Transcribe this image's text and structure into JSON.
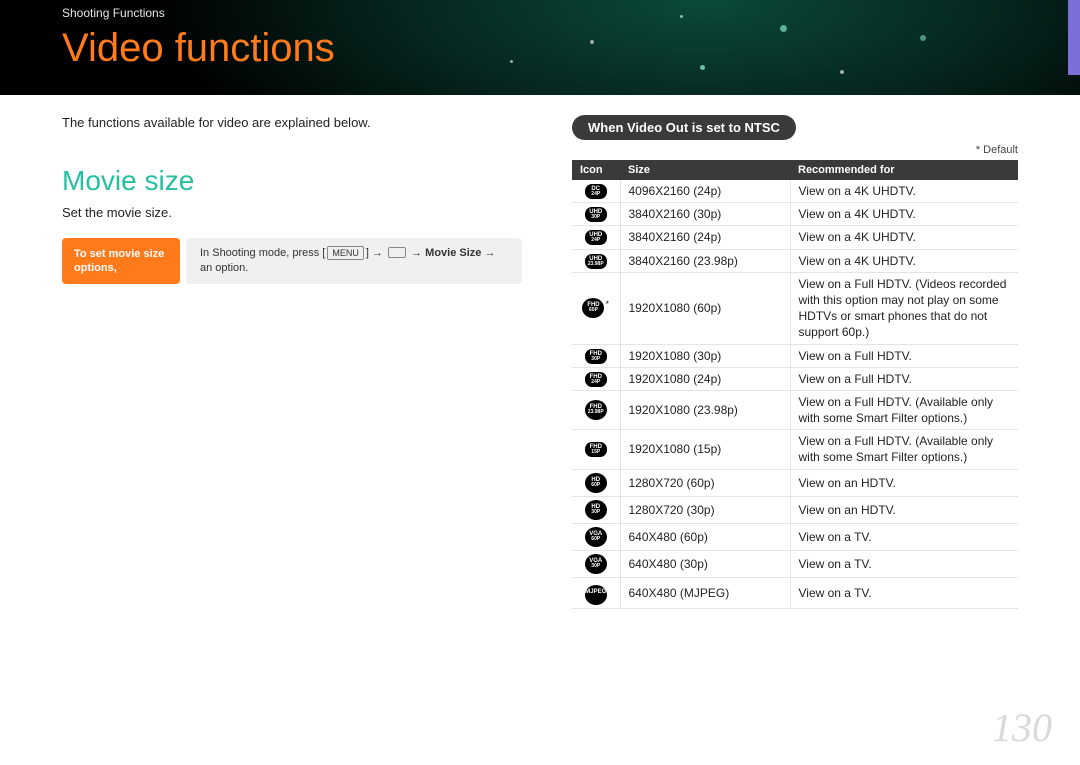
{
  "breadcrumb": "Shooting Functions",
  "page_title": "Video functions",
  "intro": "The functions available for video are explained below.",
  "section": {
    "heading": "Movie size",
    "sub": "Set the movie size."
  },
  "instruction": {
    "label": "To set movie size options,",
    "prefix": "In Shooting mode, press ",
    "menu": "MENU",
    "arrow": " → ",
    "mid": "Movie Size",
    "suffix": " an option."
  },
  "right": {
    "pill": "When Video Out is set to NTSC",
    "default_note": "* Default",
    "headers": {
      "icon": "Icon",
      "size": "Size",
      "rec": "Recommended for"
    },
    "rows": [
      {
        "icon_top": "DC",
        "icon_bot": "24P",
        "star": false,
        "size": "4096X2160 (24p)",
        "rec": "View on a 4K UHDTV."
      },
      {
        "icon_top": "UHD",
        "icon_bot": "30P",
        "star": false,
        "size": "3840X2160 (30p)",
        "rec": "View on a 4K UHDTV."
      },
      {
        "icon_top": "UHD",
        "icon_bot": "24P",
        "star": false,
        "size": "3840X2160 (24p)",
        "rec": "View on a 4K UHDTV."
      },
      {
        "icon_top": "UHD",
        "icon_bot": "23.98P",
        "star": false,
        "size": "3840X2160 (23.98p)",
        "rec": "View on a 4K UHDTV."
      },
      {
        "icon_top": "FHD",
        "icon_bot": "60P",
        "star": true,
        "round": true,
        "size": "1920X1080 (60p)",
        "rec": "View on a Full HDTV. (Videos recorded with this option may not play on some HDTVs or smart phones that do not support 60p.)"
      },
      {
        "icon_top": "FHD",
        "icon_bot": "30P",
        "star": false,
        "size": "1920X1080 (30p)",
        "rec": "View on a Full HDTV."
      },
      {
        "icon_top": "FHD",
        "icon_bot": "24P",
        "star": false,
        "size": "1920X1080 (24p)",
        "rec": "View on a Full HDTV."
      },
      {
        "icon_top": "FHD",
        "icon_bot": "23.98P",
        "star": false,
        "round": true,
        "size": "1920X1080 (23.98p)",
        "rec": "View on a Full HDTV. (Available only with some Smart Filter options.)"
      },
      {
        "icon_top": "FHD",
        "icon_bot": "15P",
        "star": false,
        "size": "1920X1080 (15p)",
        "rec": "View on a Full HDTV. (Available only with some Smart Filter options.)"
      },
      {
        "icon_top": "HD",
        "icon_bot": "60P",
        "star": false,
        "round": true,
        "size": "1280X720 (60p)",
        "rec": "View on an HDTV."
      },
      {
        "icon_top": "HD",
        "icon_bot": "30P",
        "star": false,
        "round": true,
        "size": "1280X720 (30p)",
        "rec": "View on an HDTV."
      },
      {
        "icon_top": "VGA",
        "icon_bot": "60P",
        "star": false,
        "round": true,
        "size": "640X480 (60p)",
        "rec": "View on a TV."
      },
      {
        "icon_top": "VGA",
        "icon_bot": "30P",
        "star": false,
        "round": true,
        "size": "640X480 (30p)",
        "rec": "View on a TV."
      },
      {
        "icon_top": "MJPEG",
        "icon_bot": "",
        "star": false,
        "round": true,
        "size": "640X480 (MJPEG)",
        "rec": "View on a TV."
      }
    ]
  },
  "page_number": "130",
  "colors": {
    "accent_orange": "#ff7a1a",
    "accent_teal": "#26bfa0",
    "table_header_bg": "#3a3a3a",
    "side_tab": "#7c6fd9"
  }
}
